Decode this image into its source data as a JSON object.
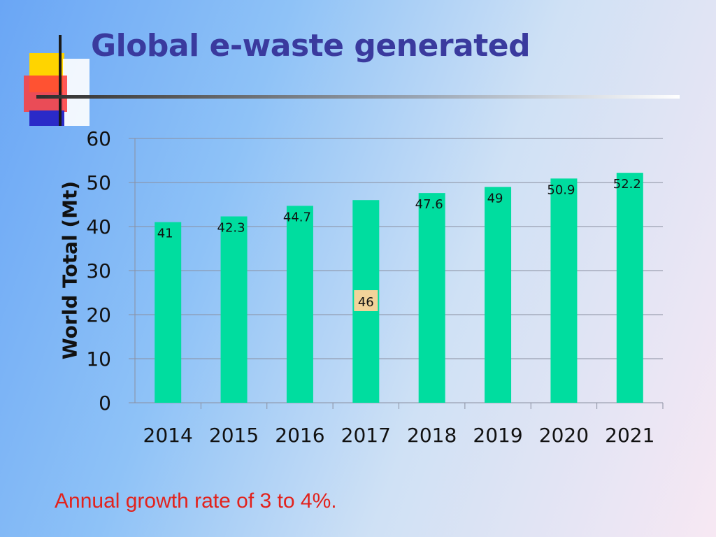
{
  "slide": {
    "title": "Global e-waste generated",
    "note": "Annual growth rate of 3 to 4%."
  },
  "colors": {
    "bar": "#00dd9f",
    "title": "#3a3a9e",
    "note": "#e2221c",
    "highlight_label_bg": "#f2d39a"
  },
  "chart_data": {
    "type": "bar",
    "title": "",
    "xlabel": "",
    "ylabel": "World Total (Mt)",
    "categories": [
      "2014",
      "2015",
      "2016",
      "2017",
      "2018",
      "2019",
      "2020",
      "2021"
    ],
    "values": [
      41,
      42.3,
      44.7,
      46,
      47.6,
      49,
      50.9,
      52.2
    ],
    "labels": [
      "41",
      "42.3",
      "44.7",
      "46",
      "47.6",
      "49",
      "50.9",
      "52.2"
    ],
    "highlighted_label": "46",
    "ylim": [
      0,
      60
    ],
    "yticks": [
      "0",
      "10",
      "20",
      "30",
      "40",
      "50",
      "60"
    ],
    "grid": true,
    "legend": "none"
  }
}
